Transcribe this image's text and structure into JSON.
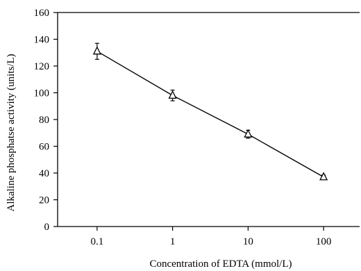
{
  "chart_data": {
    "type": "line",
    "xlabel": "Concentration of  EDTA (mmol/L)",
    "ylabel": "Alkaline phosphatse activity (units/L)",
    "x_scale": "log",
    "x_ticks": [
      "0.1",
      "1",
      "10",
      "100"
    ],
    "x_tick_values": [
      0.1,
      1,
      10,
      100
    ],
    "xlim": [
      0.03,
      300
    ],
    "y_ticks": [
      "0",
      "20",
      "40",
      "60",
      "80",
      "100",
      "120",
      "140",
      "160"
    ],
    "y_tick_values": [
      0,
      20,
      40,
      60,
      80,
      100,
      120,
      140,
      160
    ],
    "ylim": [
      0,
      160
    ],
    "grid": false,
    "legend": "none",
    "series": [
      {
        "marker": "open-triangle",
        "color": "#000000",
        "x": [
          0.1,
          1,
          10,
          100
        ],
        "y": [
          131,
          98,
          69,
          37
        ],
        "error": [
          6,
          4,
          3,
          1.5
        ]
      }
    ]
  }
}
